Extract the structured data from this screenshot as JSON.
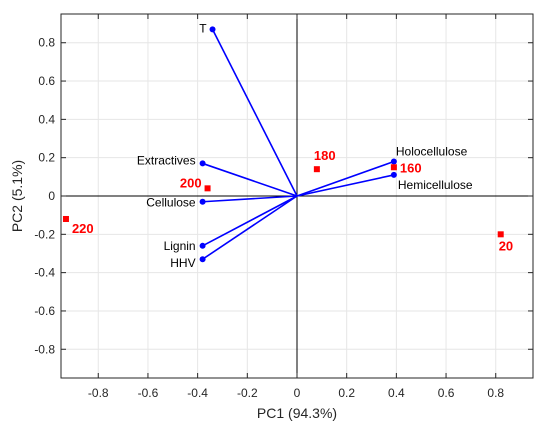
{
  "chart_data": {
    "type": "scatter",
    "subtype": "biplot",
    "xlabel": "PC1 (94.3%)",
    "ylabel": "PC2 (5.1%)",
    "xlim": [
      -0.95,
      0.95
    ],
    "ylim": [
      -0.95,
      0.95
    ],
    "xticks": [
      -0.8,
      -0.6,
      -0.4,
      -0.2,
      0,
      0.2,
      0.4,
      0.6,
      0.8
    ],
    "yticks": [
      -0.8,
      -0.6,
      -0.4,
      -0.2,
      0,
      0.2,
      0.4,
      0.6,
      0.8
    ],
    "xtick_labels": [
      "-0.8",
      "-0.6",
      "-0.4",
      "-0.2",
      "0",
      "0.2",
      "0.4",
      "0.6",
      "0.8"
    ],
    "ytick_labels": [
      "-0.8",
      "-0.6",
      "-0.4",
      "-0.2",
      "0",
      "0.2",
      "0.4",
      "0.6",
      "0.8"
    ],
    "grid": true,
    "vector_color": "#0000ff",
    "observation_color": "#ff0000",
    "vectors": [
      {
        "label": "T",
        "x": -0.34,
        "y": 0.87
      },
      {
        "label": "Extractives",
        "x": -0.38,
        "y": 0.17
      },
      {
        "label": "Cellulose",
        "x": -0.38,
        "y": -0.03
      },
      {
        "label": "Lignin",
        "x": -0.38,
        "y": -0.26
      },
      {
        "label": "HHV",
        "x": -0.38,
        "y": -0.33
      },
      {
        "label": "Holocellulose",
        "x": 0.39,
        "y": 0.18
      },
      {
        "label": "Hemicellulose",
        "x": 0.39,
        "y": 0.11
      }
    ],
    "observations": [
      {
        "label": "180",
        "x": 0.08,
        "y": 0.14
      },
      {
        "label": "160",
        "x": 0.39,
        "y": 0.15
      },
      {
        "label": "200",
        "x": -0.36,
        "y": 0.04
      },
      {
        "label": "220",
        "x": -0.93,
        "y": -0.12
      },
      {
        "label": "20",
        "x": 0.82,
        "y": -0.2
      }
    ]
  }
}
